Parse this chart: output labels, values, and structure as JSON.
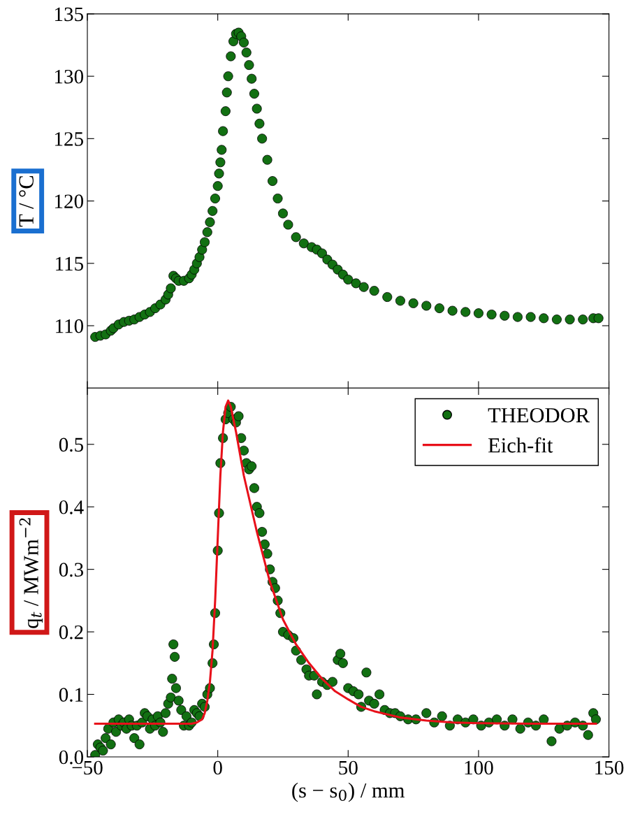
{
  "chart_data": [
    {
      "type": "scatter",
      "ylabel": "T / °C",
      "xlim": [
        -50,
        150
      ],
      "xticks": [
        {
          "value": -50,
          "label": null
        },
        {
          "value": 0,
          "label": null
        },
        {
          "value": 50,
          "label": null
        },
        {
          "value": 100,
          "label": null
        },
        {
          "value": 150,
          "label": null
        }
      ],
      "ylim": [
        105,
        135
      ],
      "yticks": [
        110,
        115,
        120,
        125,
        130,
        135
      ],
      "tick_labels": "y",
      "legend": false,
      "grid": false,
      "series": [
        {
          "color": "#127012",
          "marker": "circle",
          "x": [
            -47,
            -45,
            -43,
            -41,
            -40,
            -38,
            -36,
            -34,
            -32,
            -30,
            -28,
            -26,
            -24,
            -22,
            -20,
            -19,
            -18,
            -17,
            -16,
            -15,
            -13,
            -11,
            -10,
            -9,
            -8,
            -7,
            -6,
            -5,
            -4,
            -3,
            -2,
            -1,
            0,
            0.5,
            1,
            1.5,
            2,
            3,
            3.5,
            4,
            5,
            6,
            7,
            8,
            9,
            10,
            11,
            12,
            13,
            14,
            15,
            16,
            17,
            19,
            21,
            23,
            25,
            27,
            30,
            33,
            36,
            38,
            40,
            42,
            44,
            46,
            48,
            50,
            53,
            56,
            60,
            65,
            70,
            75,
            80,
            85,
            90,
            95,
            100,
            105,
            110,
            115,
            120,
            125,
            130,
            135,
            140,
            144,
            146
          ],
          "values": [
            109.1,
            109.2,
            109.3,
            109.6,
            109.8,
            110.1,
            110.3,
            110.4,
            110.5,
            110.7,
            110.9,
            111.1,
            111.4,
            111.7,
            112.1,
            112.5,
            113.0,
            114.0,
            113.8,
            113.6,
            113.6,
            113.8,
            114.1,
            114.5,
            115.0,
            115.5,
            116.1,
            116.7,
            117.5,
            118.3,
            119.2,
            120.2,
            121.2,
            122.2,
            123.1,
            124.1,
            125.6,
            127.2,
            128.7,
            130.0,
            131.6,
            132.8,
            133.4,
            133.5,
            133.2,
            132.7,
            131.9,
            130.9,
            129.8,
            128.6,
            127.4,
            126.2,
            125.0,
            123.3,
            121.6,
            120.2,
            119.0,
            118.1,
            117.1,
            116.6,
            116.3,
            116.1,
            115.8,
            115.3,
            114.9,
            114.5,
            114.1,
            113.7,
            113.4,
            113.1,
            112.8,
            112.3,
            112.0,
            111.8,
            111.6,
            111.4,
            111.2,
            111.1,
            111.0,
            110.9,
            110.8,
            110.7,
            110.7,
            110.6,
            110.5,
            110.5,
            110.5,
            110.6,
            110.6
          ]
        }
      ]
    },
    {
      "type": "scatter",
      "ylabel": "q$_{t}$ / MWm$^{−2}$",
      "xlabel": "(s − s$_{0}$) / mm",
      "xlim": [
        -50,
        150
      ],
      "xticks": [
        {
          "value": -50,
          "label": "−50"
        },
        0,
        50,
        100,
        150
      ],
      "ylim": [
        0,
        0.59
      ],
      "yticks": [
        {
          "value": 0,
          "label": "0.0"
        },
        0.1,
        0.2,
        0.3,
        0.4,
        0.5
      ],
      "legend": "top right",
      "grid": false,
      "series": [
        {
          "name": "THEODOR",
          "color": "#127012",
          "marker": "circle",
          "x": [
            -47,
            -46,
            -45,
            -44,
            -43,
            -42,
            -41,
            -40,
            -39,
            -38,
            -37,
            -36,
            -35,
            -34,
            -33,
            -32,
            -31,
            -30,
            -29,
            -28,
            -27,
            -26,
            -25,
            -24,
            -23,
            -22,
            -21,
            -20,
            -19,
            -18,
            -17.5,
            -17,
            -16.5,
            -16,
            -15,
            -14,
            -13,
            -12,
            -11,
            -10,
            -9,
            -8,
            -7,
            -6,
            -5,
            -4,
            -3,
            -2,
            -1.5,
            -1,
            0,
            0.5,
            1,
            2,
            3,
            4,
            5,
            6,
            7,
            8,
            9,
            10,
            11,
            12,
            13,
            14,
            15,
            16,
            17,
            18,
            19,
            20,
            21,
            22,
            23,
            24,
            25,
            27,
            29,
            30,
            32,
            34,
            35,
            37,
            38,
            40,
            42,
            44,
            46,
            47,
            48,
            50,
            52,
            54,
            55,
            57,
            58,
            60,
            62,
            64,
            66,
            68,
            70,
            73,
            76,
            80,
            83,
            86,
            89,
            92,
            95,
            98,
            101,
            104,
            107,
            110,
            113,
            116,
            119,
            122,
            125,
            128,
            131,
            134,
            137,
            140,
            142,
            144,
            145
          ],
          "values": [
            0.003,
            0.02,
            0.015,
            0.01,
            0.03,
            0.045,
            0.02,
            0.055,
            0.04,
            0.06,
            0.05,
            0.055,
            0.045,
            0.06,
            0.05,
            0.03,
            0.05,
            0.02,
            0.055,
            0.07,
            0.065,
            0.045,
            0.06,
            0.05,
            0.065,
            0.055,
            0.04,
            0.07,
            0.085,
            0.095,
            0.125,
            0.18,
            0.16,
            0.11,
            0.09,
            0.075,
            0.05,
            0.065,
            0.05,
            0.055,
            0.075,
            0.07,
            0.065,
            0.085,
            0.08,
            0.1,
            0.11,
            0.15,
            0.18,
            0.23,
            0.33,
            0.39,
            0.47,
            0.51,
            0.54,
            0.55,
            0.56,
            0.54,
            0.535,
            0.545,
            0.51,
            0.49,
            0.47,
            0.46,
            0.465,
            0.43,
            0.4,
            0.39,
            0.36,
            0.34,
            0.325,
            0.3,
            0.28,
            0.27,
            0.25,
            0.23,
            0.2,
            0.195,
            0.19,
            0.17,
            0.155,
            0.14,
            0.13,
            0.13,
            0.1,
            0.12,
            0.115,
            0.12,
            0.155,
            0.165,
            0.15,
            0.11,
            0.105,
            0.1,
            0.08,
            0.135,
            0.09,
            0.085,
            0.1,
            0.075,
            0.07,
            0.07,
            0.065,
            0.06,
            0.06,
            0.07,
            0.055,
            0.065,
            0.05,
            0.06,
            0.055,
            0.06,
            0.05,
            0.055,
            0.06,
            0.05,
            0.06,
            0.045,
            0.055,
            0.05,
            0.06,
            0.025,
            0.045,
            0.05,
            0.055,
            0.05,
            0.035,
            0.07,
            0.06
          ]
        },
        {
          "name": "Eich-fit",
          "type": "line",
          "color": "#e8101a",
          "marker": "none",
          "x": [
            -47,
            -10,
            -8,
            -6,
            -5,
            -4,
            -3,
            -2,
            -1,
            0,
            1,
            2,
            3,
            4,
            5,
            7,
            10,
            15,
            20,
            25,
            30,
            35,
            40,
            45,
            50,
            55,
            60,
            70,
            80,
            90,
            100,
            120,
            145
          ],
          "values": [
            0.053,
            0.053,
            0.055,
            0.06,
            0.07,
            0.09,
            0.12,
            0.17,
            0.25,
            0.35,
            0.45,
            0.52,
            0.56,
            0.57,
            0.56,
            0.52,
            0.45,
            0.36,
            0.28,
            0.22,
            0.18,
            0.15,
            0.125,
            0.105,
            0.092,
            0.08,
            0.073,
            0.063,
            0.058,
            0.055,
            0.054,
            0.053,
            0.053
          ]
        }
      ]
    }
  ]
}
